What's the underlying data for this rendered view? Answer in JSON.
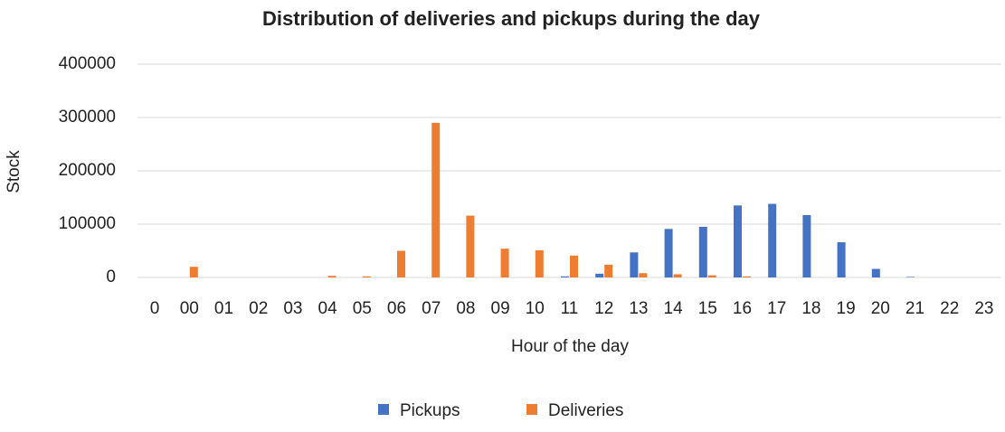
{
  "chart_data": {
    "type": "bar",
    "title": "Distribution of deliveries and pickups during the day",
    "x_label": "Hour of the day",
    "y_label": "Stock",
    "categories": [
      "0",
      "00",
      "01",
      "02",
      "03",
      "04",
      "05",
      "06",
      "07",
      "08",
      "09",
      "10",
      "11",
      "12",
      "13",
      "14",
      "15",
      "16",
      "17",
      "18",
      "19",
      "20",
      "21",
      "22",
      "23"
    ],
    "series": [
      {
        "name": "Pickups",
        "color": "#4472c4",
        "values": [
          0,
          0,
          0,
          0,
          0,
          0,
          0,
          0,
          0,
          0,
          0,
          0,
          2000,
          7000,
          47000,
          91000,
          95000,
          135000,
          138000,
          117000,
          66000,
          16000,
          1000,
          0,
          0
        ]
      },
      {
        "name": "Deliveries",
        "color": "#ed7d31",
        "values": [
          0,
          20000,
          0,
          0,
          0,
          3000,
          2000,
          50000,
          290000,
          116000,
          54000,
          51000,
          41000,
          24000,
          8000,
          6000,
          4000,
          2000,
          0,
          0,
          0,
          0,
          0,
          0,
          0
        ]
      }
    ],
    "ylim": [
      0,
      400000
    ],
    "yticks": [
      0,
      100000,
      200000,
      300000,
      400000
    ],
    "grid": true,
    "legend": "bottom"
  }
}
